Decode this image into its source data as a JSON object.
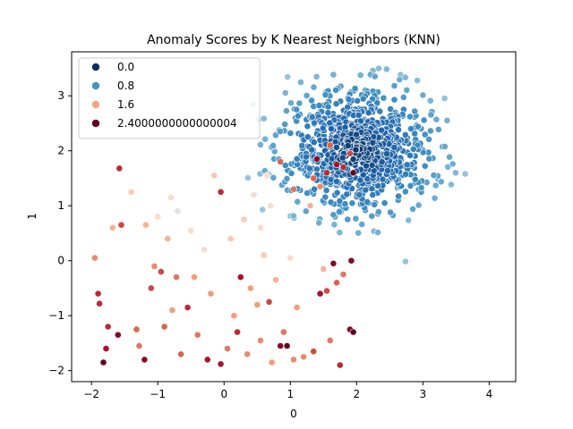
{
  "chart_data": {
    "type": "scatter",
    "title": "Anomaly Scores by K Nearest Neighbors (KNN)",
    "xlabel": "0",
    "ylabel": "1",
    "xlim": [
      -2.3,
      4.4
    ],
    "ylim": [
      -2.2,
      3.8
    ],
    "xticks": [
      -2,
      -1,
      0,
      1,
      2,
      3,
      4
    ],
    "yticks": [
      -2,
      -1,
      0,
      1,
      2,
      3
    ],
    "grid": false,
    "legend_position": "top-left",
    "colormap": "RdBu_r",
    "legend": [
      {
        "label": "0.0",
        "color": "#053061"
      },
      {
        "label": "0.8",
        "color": "#4393c3"
      },
      {
        "label": "1.6",
        "color": "#f4a582"
      },
      {
        "label": "2.4000000000000004",
        "color": "#67001f"
      }
    ],
    "inlier_cluster": {
      "center": [
        2.0,
        2.0
      ],
      "spread": [
        0.55,
        0.55
      ],
      "count": 900,
      "score_range": [
        0.0,
        0.9
      ]
    },
    "outlier_points": [
      [
        -1.95,
        0.05,
        1.7
      ],
      [
        -1.9,
        -0.6,
        2.1
      ],
      [
        -1.88,
        -0.78,
        2.1
      ],
      [
        -1.82,
        -1.85,
        2.4
      ],
      [
        -1.78,
        -1.6,
        2.2
      ],
      [
        -1.75,
        -1.2,
        2.1
      ],
      [
        -1.68,
        0.6,
        1.5
      ],
      [
        -1.6,
        -1.35,
        2.3
      ],
      [
        -1.58,
        1.68,
        2.1
      ],
      [
        -1.55,
        0.65,
        2.0
      ],
      [
        -1.4,
        1.25,
        1.4
      ],
      [
        -1.32,
        -1.25,
        1.9
      ],
      [
        -1.28,
        -1.55,
        1.8
      ],
      [
        -1.2,
        -1.8,
        2.3
      ],
      [
        -1.18,
        0.65,
        1.5
      ],
      [
        -1.1,
        -0.5,
        2.0
      ],
      [
        -1.05,
        -0.1,
        1.7
      ],
      [
        -1.0,
        0.8,
        1.3
      ],
      [
        -0.95,
        -0.2,
        2.0
      ],
      [
        -0.9,
        -1.2,
        1.9
      ],
      [
        -0.85,
        0.4,
        1.5
      ],
      [
        -0.8,
        1.15,
        1.3
      ],
      [
        -0.78,
        -0.9,
        1.6
      ],
      [
        -0.72,
        -0.3,
        1.8
      ],
      [
        -0.7,
        0.9,
        1.2
      ],
      [
        -0.65,
        -1.7,
        1.9
      ],
      [
        -0.55,
        -0.85,
        2.1
      ],
      [
        -0.5,
        0.55,
        1.3
      ],
      [
        -0.45,
        -0.3,
        1.6
      ],
      [
        -0.4,
        -1.35,
        1.8
      ],
      [
        -0.3,
        0.2,
        1.3
      ],
      [
        -0.25,
        -1.8,
        2.2
      ],
      [
        -0.2,
        -0.6,
        1.6
      ],
      [
        -0.15,
        1.55,
        1.4
      ],
      [
        -0.05,
        -1.88,
        2.2
      ],
      [
        -0.05,
        1.25,
        2.1
      ],
      [
        0.05,
        -1.6,
        1.8
      ],
      [
        0.1,
        0.4,
        1.4
      ],
      [
        0.15,
        -1.0,
        1.6
      ],
      [
        0.2,
        -1.3,
        2.1
      ],
      [
        0.25,
        -0.3,
        2.2
      ],
      [
        0.3,
        0.75,
        1.4
      ],
      [
        0.35,
        -1.7,
        1.7
      ],
      [
        0.4,
        -0.5,
        1.6
      ],
      [
        0.45,
        1.2,
        1.3
      ],
      [
        0.5,
        -0.8,
        1.6
      ],
      [
        0.55,
        -1.45,
        1.7
      ],
      [
        0.6,
        0.1,
        1.4
      ],
      [
        0.65,
        1.55,
        1.3
      ],
      [
        0.68,
        -0.75,
        2.0
      ],
      [
        0.72,
        -1.85,
        1.6
      ],
      [
        0.78,
        -0.35,
        1.5
      ],
      [
        0.85,
        -1.55,
        2.3
      ],
      [
        0.9,
        -1.3,
        1.8
      ],
      [
        0.95,
        -1.55,
        2.4
      ],
      [
        1.0,
        0.05,
        1.3
      ],
      [
        1.05,
        -1.8,
        1.7
      ],
      [
        1.1,
        -0.85,
        1.6
      ],
      [
        1.2,
        -1.75,
        1.7
      ],
      [
        1.3,
        1.0,
        1.5
      ],
      [
        1.35,
        -1.65,
        2.0
      ],
      [
        1.45,
        -0.6,
        2.2
      ],
      [
        1.5,
        -0.15,
        1.5
      ],
      [
        1.55,
        -0.55,
        2.0
      ],
      [
        1.6,
        -1.45,
        1.8
      ],
      [
        1.65,
        -0.05,
        2.3
      ],
      [
        1.7,
        -0.4,
        1.9
      ],
      [
        1.75,
        -1.9,
        2.1
      ],
      [
        1.8,
        -0.25,
        1.8
      ],
      [
        1.9,
        -1.25,
        2.3
      ],
      [
        1.92,
        0.0,
        2.3
      ],
      [
        1.95,
        -1.3,
        2.4
      ],
      [
        1.4,
        1.85,
        2.3
      ],
      [
        1.55,
        1.6,
        2.1
      ],
      [
        1.7,
        1.75,
        2.2
      ],
      [
        1.9,
        1.95,
        2.0
      ],
      [
        1.95,
        1.6,
        2.4
      ],
      [
        1.8,
        1.7,
        2.1
      ],
      [
        1.35,
        1.5,
        1.9
      ],
      [
        1.05,
        1.3,
        1.8
      ],
      [
        0.85,
        1.8,
        1.9
      ],
      [
        1.6,
        2.1,
        1.9
      ],
      [
        1.45,
        1.35,
        1.7
      ],
      [
        0.7,
        1.0,
        1.3
      ],
      [
        0.55,
        0.6,
        1.3
      ]
    ]
  }
}
